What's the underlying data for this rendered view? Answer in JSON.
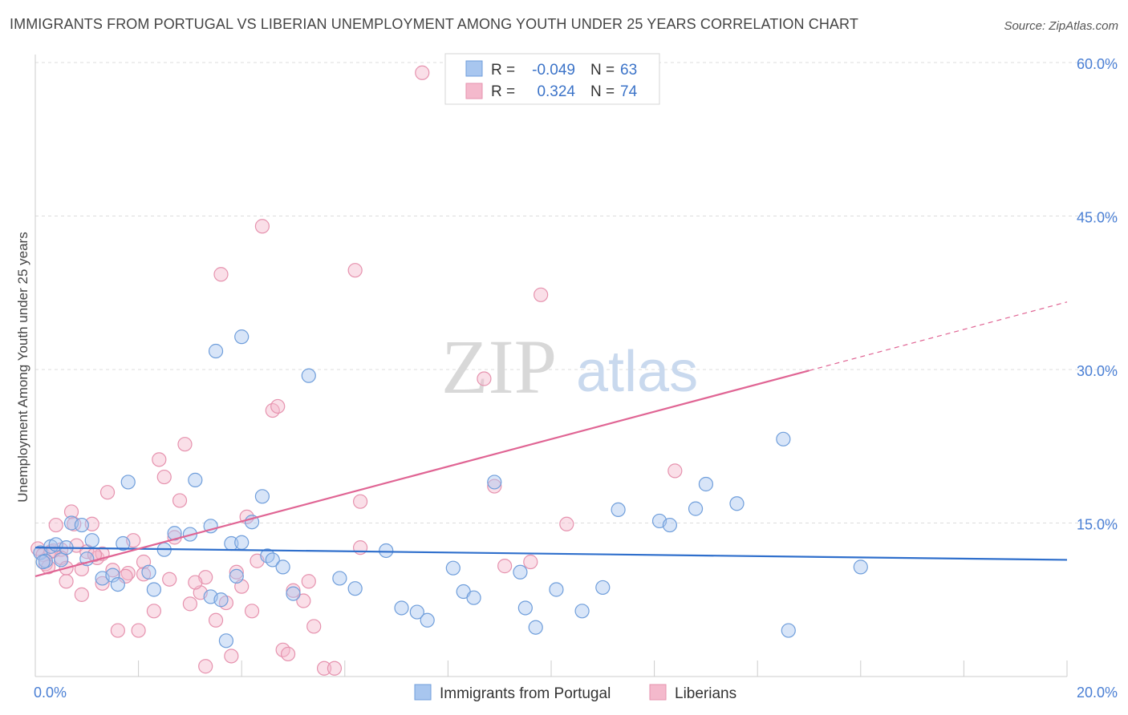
{
  "title": "IMMIGRANTS FROM PORTUGAL VS LIBERIAN UNEMPLOYMENT AMONG YOUTH UNDER 25 YEARS CORRELATION CHART",
  "source": "Source: ZipAtlas.com",
  "watermark": {
    "zip": "ZIP",
    "atlas": "atlas"
  },
  "colors": {
    "blue_fill": "#a8c6ef",
    "blue_stroke": "#6f9edb",
    "blue_line": "#2f6fcc",
    "pink_fill": "#f4b9cc",
    "pink_stroke": "#e692ae",
    "pink_line": "#e06594",
    "grid": "#dcdcdc",
    "axis": "#cccccc",
    "tick_text": "#4a7fd4"
  },
  "legend": {
    "blue": {
      "r_label": "R =",
      "r_value": "-0.049",
      "n_label": "N =",
      "n_value": "63"
    },
    "pink": {
      "r_label": "R =",
      "r_value": "0.324",
      "n_label": "N =",
      "n_value": "74"
    }
  },
  "chart_data": {
    "type": "scatter",
    "title": "IMMIGRANTS FROM PORTUGAL VS LIBERIAN UNEMPLOYMENT AMONG YOUTH UNDER 25 YEARS CORRELATION CHART",
    "xlabel": "",
    "ylabel": "Unemployment Among Youth under 25 years",
    "xlim": [
      0,
      20
    ],
    "ylim": [
      0,
      60
    ],
    "x_tick_labels": [
      "0.0%",
      "20.0%"
    ],
    "y_ticks": [
      15,
      30,
      45,
      60
    ],
    "y_tick_labels": [
      "15.0%",
      "30.0%",
      "45.0%",
      "60.0%"
    ],
    "grid": true,
    "series": [
      {
        "name": "Immigrants from Portugal",
        "color": "blue",
        "trend": {
          "x": [
            0,
            20
          ],
          "y": [
            12.6,
            11.4
          ],
          "extrapolated_to": null
        },
        "points": [
          [
            0.1,
            12.1
          ],
          [
            0.2,
            11.3
          ],
          [
            0.3,
            12.7
          ],
          [
            0.4,
            12.9
          ],
          [
            0.5,
            11.4
          ],
          [
            0.6,
            12.6
          ],
          [
            0.7,
            15.0
          ],
          [
            0.9,
            14.8
          ],
          [
            1.0,
            11.5
          ],
          [
            1.1,
            13.3
          ],
          [
            1.3,
            9.6
          ],
          [
            1.5,
            9.9
          ],
          [
            1.6,
            9.0
          ],
          [
            1.7,
            13.0
          ],
          [
            1.8,
            19.0
          ],
          [
            2.2,
            10.2
          ],
          [
            2.3,
            8.5
          ],
          [
            2.5,
            12.4
          ],
          [
            2.7,
            14.0
          ],
          [
            3.0,
            13.9
          ],
          [
            3.1,
            19.2
          ],
          [
            3.4,
            14.7
          ],
          [
            3.4,
            7.8
          ],
          [
            3.5,
            31.8
          ],
          [
            3.6,
            7.5
          ],
          [
            3.7,
            3.5
          ],
          [
            3.8,
            13.0
          ],
          [
            3.9,
            9.8
          ],
          [
            4.0,
            13.1
          ],
          [
            4.0,
            33.2
          ],
          [
            4.2,
            15.1
          ],
          [
            4.4,
            17.6
          ],
          [
            4.5,
            11.8
          ],
          [
            4.6,
            11.4
          ],
          [
            4.8,
            10.7
          ],
          [
            5.0,
            8.1
          ],
          [
            5.3,
            29.4
          ],
          [
            5.9,
            9.6
          ],
          [
            6.2,
            8.6
          ],
          [
            6.8,
            12.3
          ],
          [
            7.1,
            6.7
          ],
          [
            7.4,
            6.3
          ],
          [
            7.6,
            5.5
          ],
          [
            8.1,
            10.6
          ],
          [
            8.3,
            8.3
          ],
          [
            8.5,
            7.7
          ],
          [
            8.9,
            19.0
          ],
          [
            9.4,
            10.2
          ],
          [
            9.5,
            6.7
          ],
          [
            9.7,
            4.8
          ],
          [
            10.1,
            8.5
          ],
          [
            10.6,
            6.4
          ],
          [
            11.0,
            8.7
          ],
          [
            11.3,
            16.3
          ],
          [
            12.1,
            15.2
          ],
          [
            12.3,
            14.8
          ],
          [
            12.8,
            16.4
          ],
          [
            13.0,
            18.8
          ],
          [
            13.6,
            16.9
          ],
          [
            14.5,
            23.2
          ],
          [
            14.6,
            4.5
          ],
          [
            16.0,
            10.7
          ],
          [
            0.15,
            11.2
          ]
        ]
      },
      {
        "name": "Liberians",
        "color": "pink",
        "trend": {
          "x": [
            0,
            15
          ],
          "y": [
            9.8,
            29.9
          ],
          "extrapolated_to": [
            20,
            36.6
          ]
        },
        "points": [
          [
            0.05,
            12.5
          ],
          [
            0.15,
            11.9
          ],
          [
            0.2,
            11.0
          ],
          [
            0.3,
            12.2
          ],
          [
            0.4,
            14.8
          ],
          [
            0.5,
            12.4
          ],
          [
            0.5,
            11.6
          ],
          [
            0.6,
            9.3
          ],
          [
            0.6,
            10.6
          ],
          [
            0.7,
            16.1
          ],
          [
            0.8,
            12.8
          ],
          [
            0.9,
            10.5
          ],
          [
            0.9,
            8.0
          ],
          [
            1.0,
            12.2
          ],
          [
            1.1,
            14.9
          ],
          [
            1.2,
            11.6
          ],
          [
            1.3,
            12.0
          ],
          [
            1.3,
            9.1
          ],
          [
            1.4,
            18.0
          ],
          [
            1.5,
            10.4
          ],
          [
            1.6,
            4.5
          ],
          [
            1.8,
            10.1
          ],
          [
            1.9,
            13.3
          ],
          [
            2.0,
            4.5
          ],
          [
            2.1,
            11.2
          ],
          [
            2.1,
            10.0
          ],
          [
            2.3,
            6.4
          ],
          [
            2.4,
            21.2
          ],
          [
            2.5,
            19.5
          ],
          [
            2.7,
            13.6
          ],
          [
            2.8,
            17.2
          ],
          [
            2.9,
            22.7
          ],
          [
            3.0,
            7.1
          ],
          [
            3.2,
            8.2
          ],
          [
            3.3,
            1.0
          ],
          [
            3.3,
            9.7
          ],
          [
            3.5,
            5.5
          ],
          [
            3.6,
            39.3
          ],
          [
            3.7,
            7.2
          ],
          [
            3.8,
            2.0
          ],
          [
            3.9,
            10.2
          ],
          [
            4.0,
            8.8
          ],
          [
            4.1,
            15.6
          ],
          [
            4.2,
            6.4
          ],
          [
            4.3,
            11.3
          ],
          [
            4.4,
            44.0
          ],
          [
            4.6,
            26.0
          ],
          [
            4.7,
            26.4
          ],
          [
            4.8,
            2.6
          ],
          [
            4.9,
            2.2
          ],
          [
            5.0,
            8.4
          ],
          [
            5.2,
            7.4
          ],
          [
            5.3,
            9.3
          ],
          [
            5.4,
            4.9
          ],
          [
            5.6,
            0.8
          ],
          [
            5.8,
            0.8
          ],
          [
            6.2,
            39.7
          ],
          [
            6.3,
            17.1
          ],
          [
            6.3,
            12.6
          ],
          [
            7.5,
            59.0
          ],
          [
            8.7,
            29.1
          ],
          [
            8.9,
            18.6
          ],
          [
            9.1,
            10.8
          ],
          [
            9.6,
            11.2
          ],
          [
            9.8,
            37.3
          ],
          [
            10.3,
            14.9
          ],
          [
            12.4,
            20.1
          ],
          [
            0.35,
            12.3
          ],
          [
            0.75,
            14.9
          ],
          [
            0.25,
            10.7
          ],
          [
            1.15,
            11.9
          ],
          [
            2.6,
            9.5
          ],
          [
            3.1,
            9.2
          ],
          [
            1.75,
            9.8
          ]
        ]
      }
    ]
  },
  "bottom_legend": {
    "blue_label": "Immigrants from Portugal",
    "pink_label": "Liberians"
  }
}
